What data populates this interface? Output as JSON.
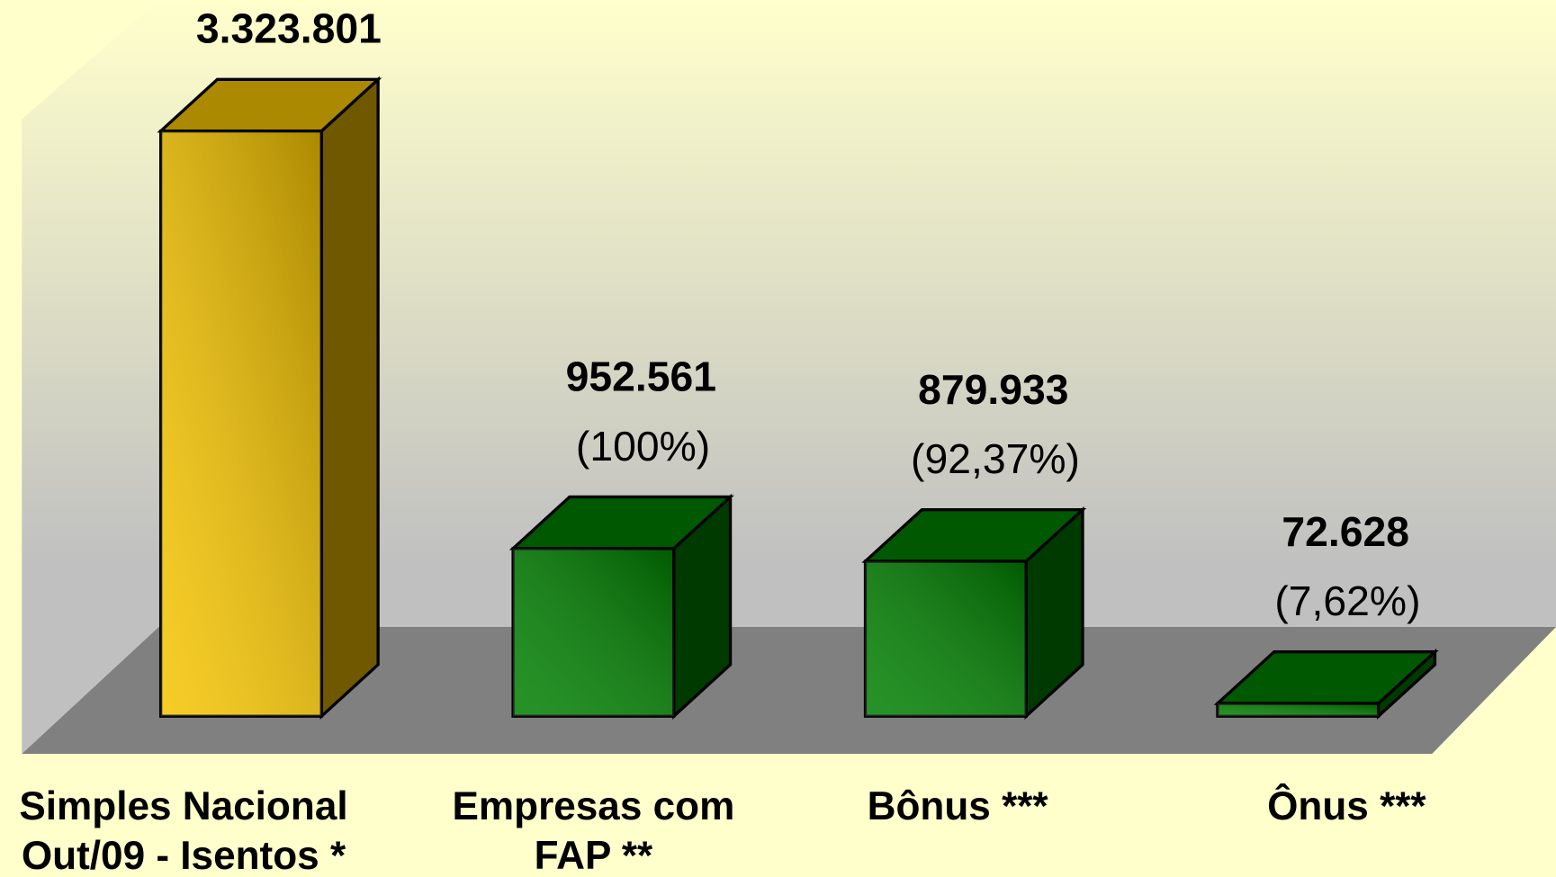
{
  "chart_data": {
    "type": "bar3d",
    "categories": [
      "Simples Nacional\nOut/09 - Isentos *",
      "Empresas com\nFAP **",
      "Bônus ***",
      "Ônus ***"
    ],
    "values": [
      3323801,
      952561,
      879933,
      72628
    ],
    "value_labels": [
      "3.323.801",
      "952.561",
      "879.933",
      "72.628"
    ],
    "percent_labels": [
      null,
      "(100%)",
      "(92,37%)",
      "(7,62%)"
    ],
    "colors": [
      "#f5c400",
      "#008000",
      "#008000",
      "#008000"
    ]
  }
}
